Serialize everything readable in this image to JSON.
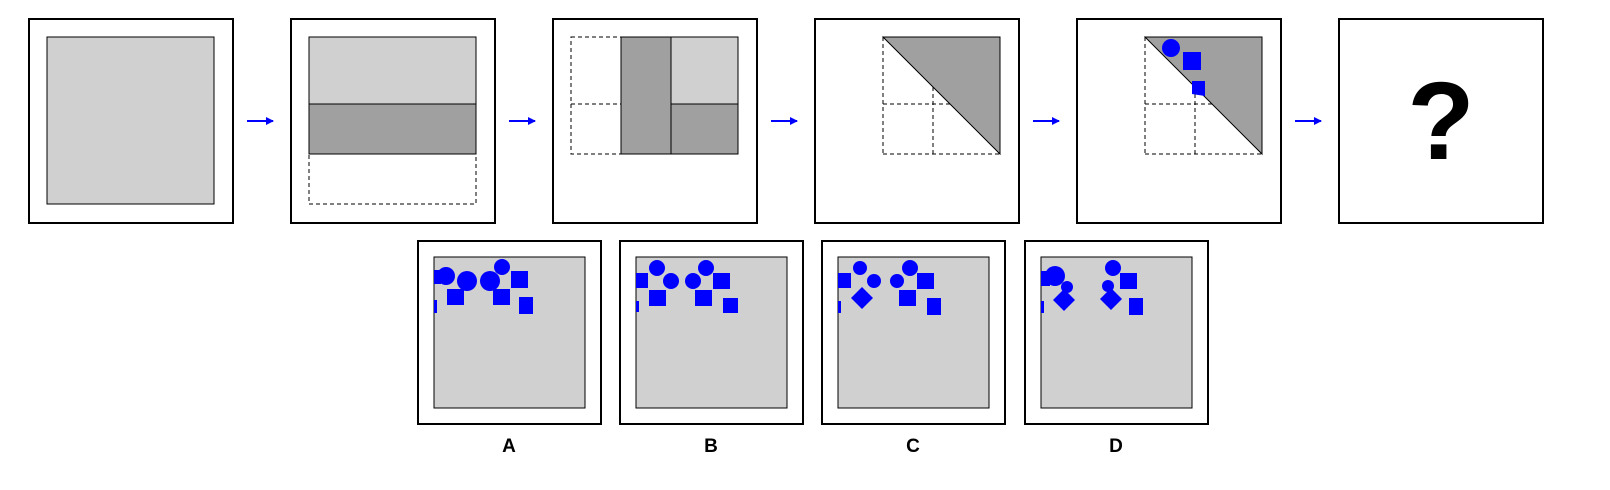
{
  "colors": {
    "background": "#ffffff",
    "frame_stroke": "#000000",
    "paper": "#d0d0d0",
    "folded": "#a0a0a0",
    "punch": "#0000ff",
    "arrow": "#0000ff"
  },
  "sequence": {
    "steps": [
      {
        "icon": "square-paper"
      },
      {
        "icon": "horizontal-fold"
      },
      {
        "icon": "vertical-fold"
      },
      {
        "icon": "diagonal-fold"
      },
      {
        "icon": "punched-holes"
      }
    ],
    "arrow_icon": "right-arrow-icon",
    "question_mark": "?"
  },
  "options": [
    {
      "label": "A"
    },
    {
      "label": "B"
    },
    {
      "label": "C"
    },
    {
      "label": "D"
    }
  ]
}
